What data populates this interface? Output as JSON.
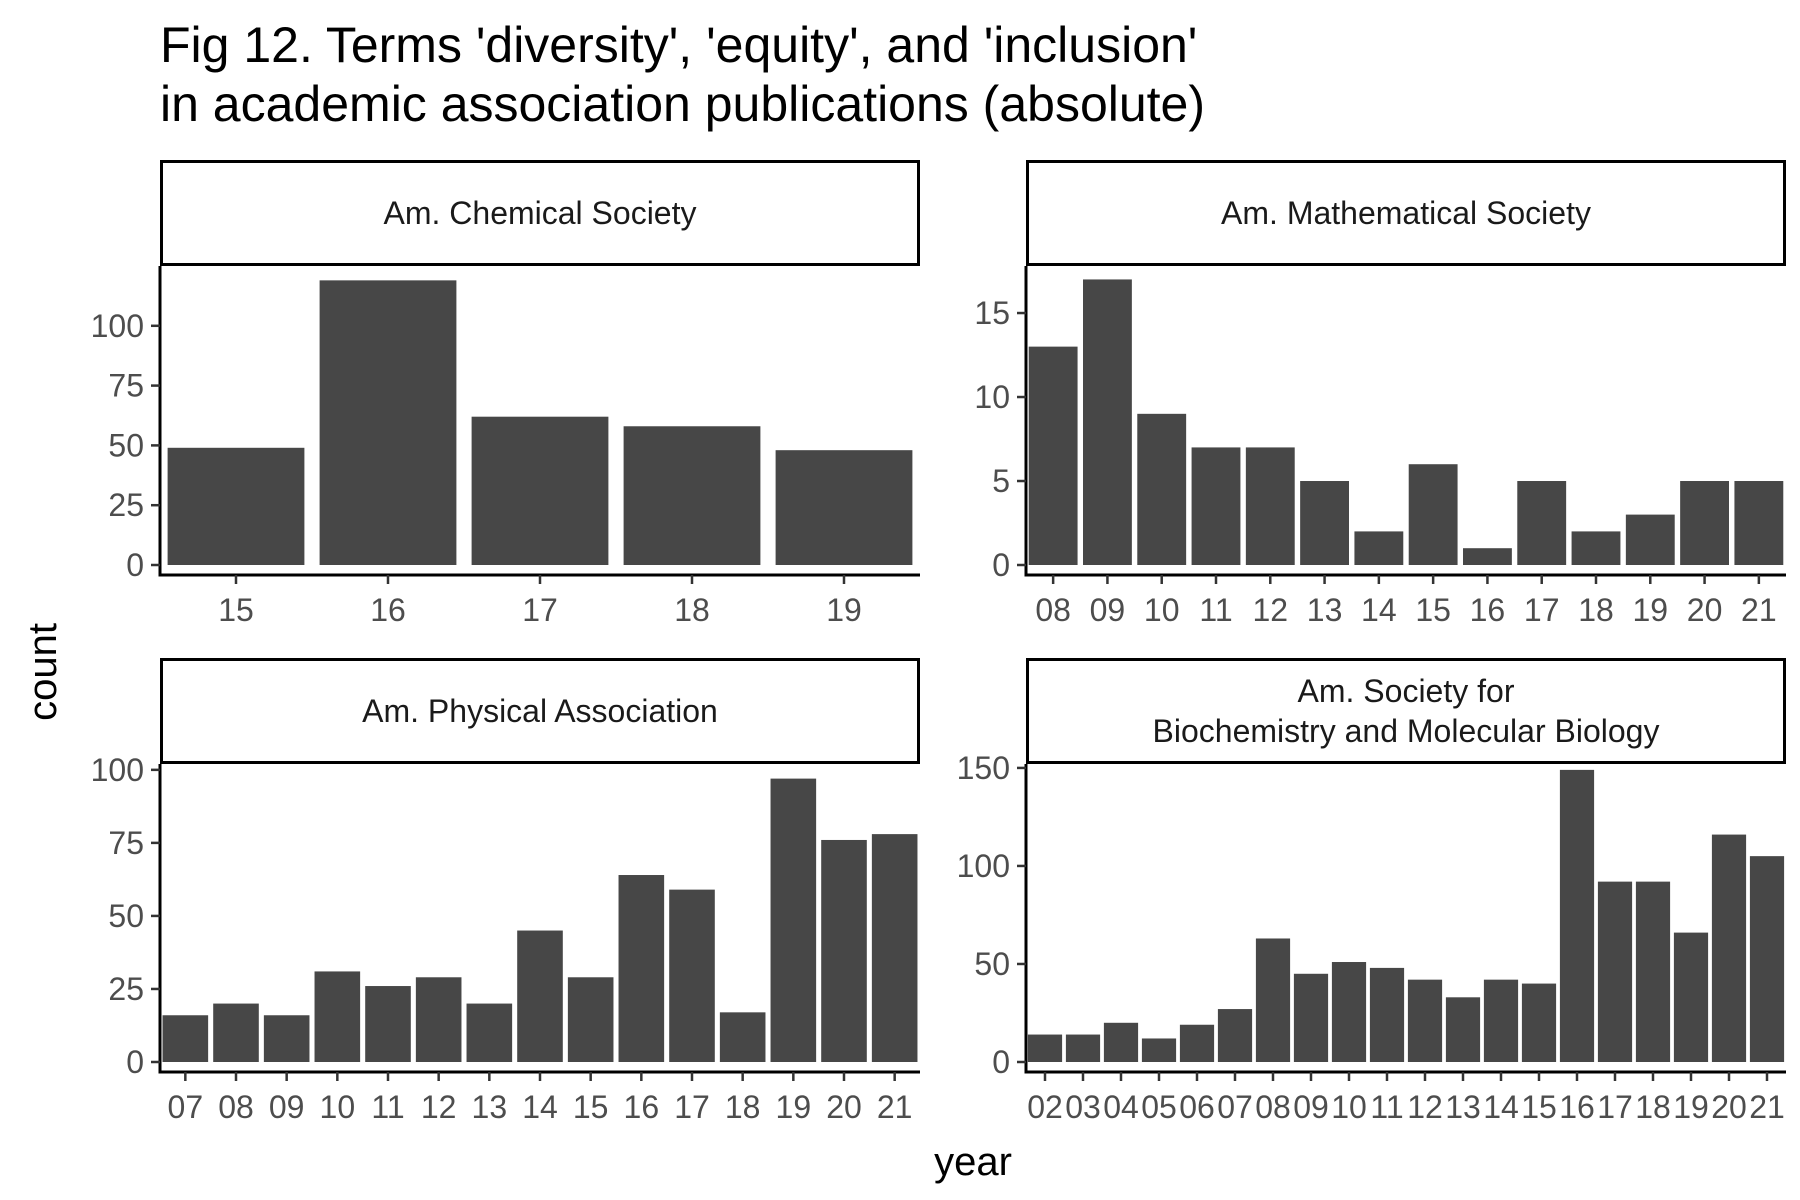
{
  "figure": {
    "title_line1": "Fig 12. Terms 'diversity', 'equity', and 'inclusion'",
    "title_line2": "in academic association publications (absolute)",
    "xlabel": "year",
    "ylabel": "count",
    "bar_color": "#474747"
  },
  "chart_data": [
    {
      "type": "bar",
      "panel": "Am. Chemical Society",
      "strip_lines": [
        "Am. Chemical Society"
      ],
      "categories": [
        "15",
        "16",
        "17",
        "18",
        "19"
      ],
      "values": [
        49,
        119,
        62,
        58,
        48
      ],
      "ylim": [
        0,
        125
      ],
      "yticks": [
        0,
        25,
        50,
        75,
        100
      ]
    },
    {
      "type": "bar",
      "panel": "Am. Mathematical Society",
      "strip_lines": [
        "Am. Mathematical Society"
      ],
      "categories": [
        "08",
        "09",
        "10",
        "11",
        "12",
        "13",
        "14",
        "15",
        "16",
        "17",
        "18",
        "19",
        "20",
        "21"
      ],
      "values": [
        13,
        17,
        9,
        7,
        7,
        5,
        2,
        6,
        1,
        5,
        2,
        3,
        5,
        5
      ],
      "ylim": [
        0,
        17.8
      ],
      "yticks": [
        0,
        5,
        10,
        15
      ]
    },
    {
      "type": "bar",
      "panel": "Am. Physical Association",
      "strip_lines": [
        "Am. Physical Association"
      ],
      "categories": [
        "07",
        "08",
        "09",
        "10",
        "11",
        "12",
        "13",
        "14",
        "15",
        "16",
        "17",
        "18",
        "19",
        "20",
        "21"
      ],
      "values": [
        16,
        20,
        16,
        31,
        26,
        29,
        20,
        45,
        29,
        64,
        59,
        17,
        97,
        76,
        78
      ],
      "ylim": [
        0,
        102
      ],
      "yticks": [
        0,
        25,
        50,
        75,
        100
      ]
    },
    {
      "type": "bar",
      "panel": "Am. Society for Biochemistry and Molecular Biology",
      "strip_lines": [
        "Am. Society for",
        "Biochemistry and Molecular Biology"
      ],
      "categories": [
        "02",
        "03",
        "04",
        "05",
        "06",
        "07",
        "08",
        "09",
        "10",
        "11",
        "12",
        "13",
        "14",
        "15",
        "16",
        "17",
        "18",
        "19",
        "20",
        "21"
      ],
      "values": [
        14,
        14,
        20,
        12,
        19,
        27,
        63,
        45,
        51,
        48,
        42,
        33,
        42,
        40,
        149,
        92,
        92,
        66,
        116,
        105
      ],
      "ylim": [
        0,
        152
      ],
      "yticks": [
        0,
        50,
        100,
        150
      ]
    }
  ]
}
